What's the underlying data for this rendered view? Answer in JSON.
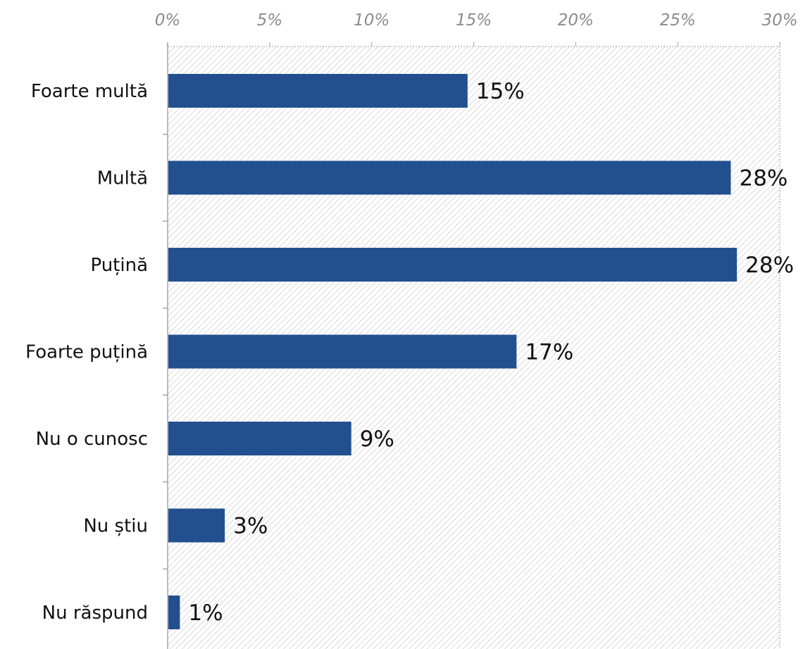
{
  "chart_data": {
    "type": "bar",
    "orientation": "horizontal",
    "categories": [
      "Foarte multă",
      "Multă",
      "Puțină",
      "Foarte puțină",
      "Nu o cunosc",
      "Nu știu",
      "Nu răspund"
    ],
    "values": [
      14.7,
      27.6,
      27.9,
      17.1,
      9.0,
      2.8,
      0.6
    ],
    "data_labels": [
      "15%",
      "28%",
      "28%",
      "17%",
      "9%",
      "3%",
      "1%"
    ],
    "xlim": [
      0,
      30
    ],
    "x_ticks": [
      0,
      5,
      10,
      15,
      20,
      25,
      30
    ],
    "x_tick_labels": [
      "0%",
      "5%",
      "10%",
      "15%",
      "20%",
      "25%",
      "30%"
    ],
    "x_axis_position": "top",
    "grid": true,
    "legend": "none",
    "title": "",
    "xlabel": "",
    "ylabel": "",
    "colors": {
      "bar": "#22508F",
      "plot_hatch": "#d9d9d9",
      "axis": "#a6a6a6",
      "grid": "#bfbfbf",
      "tick_text": "#8c8c8c",
      "label_text": "#111111"
    }
  }
}
